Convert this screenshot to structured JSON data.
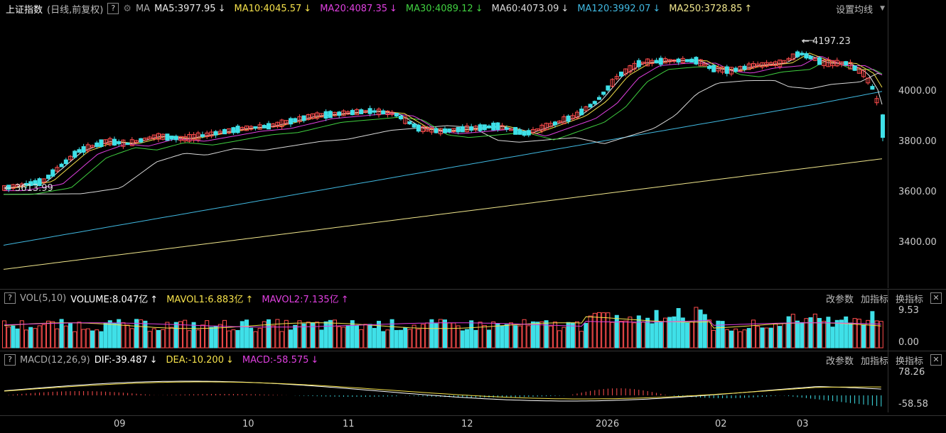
{
  "main": {
    "title": "上证指数",
    "subtitle": "(日线,前复权)",
    "help": "?",
    "ma_label": "MA",
    "mas": [
      {
        "text": "MA5:3977.95",
        "arrow": "↓",
        "color": "#e8e8e8"
      },
      {
        "text": "MA10:4045.57",
        "arrow": "↓",
        "color": "#f4e04a"
      },
      {
        "text": "MA20:4087.35",
        "arrow": "↓",
        "color": "#e040e0"
      },
      {
        "text": "MA30:4089.12",
        "arrow": "↓",
        "color": "#40d040"
      },
      {
        "text": "MA60:4073.09",
        "arrow": "↓",
        "color": "#d8d8d8"
      },
      {
        "text": "MA120:3992.07",
        "arrow": "↓",
        "color": "#40b8e0"
      },
      {
        "text": "MA250:3728.85",
        "arrow": "↑",
        "color": "#f0e68c"
      }
    ],
    "settings": "设置均线",
    "yticks": [
      "4000.00",
      "3800.00",
      "3600.00",
      "3400.00"
    ],
    "high_label": "4197.23",
    "low_label": "3613.99"
  },
  "volume": {
    "help": "?",
    "label": "VOL(5,10)",
    "volume": "VOLUME:8.047亿",
    "volume_arrow": "↑",
    "mavol1": "MAVOL1:6.883亿",
    "mavol1_arrow": "↑",
    "mavol2": "MAVOL2:7.135亿",
    "mavol2_arrow": "↑",
    "tools": [
      "改参数",
      "加指标",
      "换指标"
    ],
    "close": "✕",
    "yticks": [
      "9.53",
      "0.00"
    ]
  },
  "macd": {
    "help": "?",
    "label": "MACD(12,26,9)",
    "dif": "DIF:-39.487",
    "dif_arrow": "↓",
    "dea": "DEA:-10.200",
    "dea_arrow": "↓",
    "macd": "MACD:-58.575",
    "macd_arrow": "↓",
    "tools": [
      "改参数",
      "加指标",
      "换指标"
    ],
    "close": "✕",
    "yticks": [
      "78.26",
      "-58.58"
    ]
  },
  "xaxis": [
    "09",
    "10",
    "11",
    "12",
    "2026",
    "02",
    "03"
  ],
  "colors": {
    "up": "#ff4d4d",
    "down": "#3fe0e8",
    "bg": "#000000"
  }
}
